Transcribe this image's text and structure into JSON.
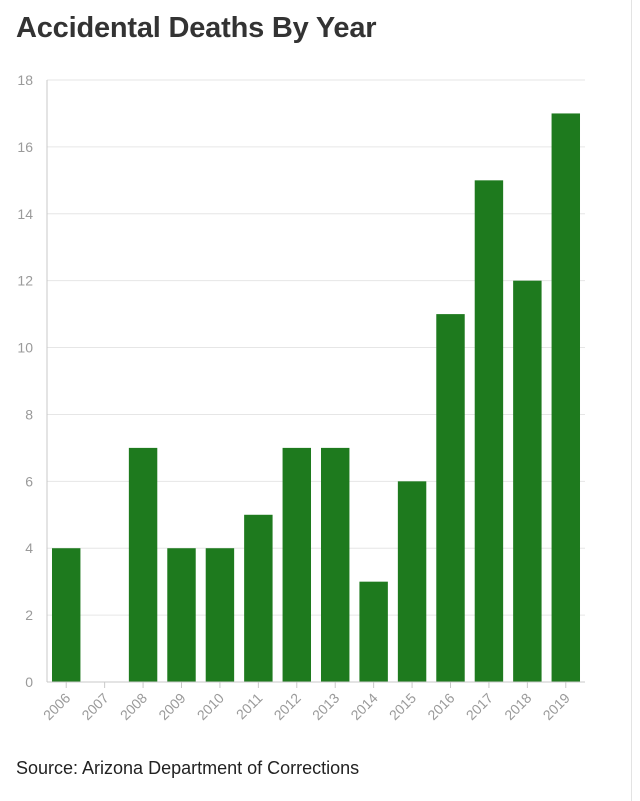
{
  "header": {
    "title": "Accidental Deaths By Year"
  },
  "footer": {
    "source": "Source: Arizona Department of Corrections"
  },
  "colors": {
    "bar": "#1e7a1e",
    "grid": "#e6e6e6",
    "tick_label": "#9a9a9a",
    "axis": "#c8c8c8"
  },
  "chart_data": {
    "type": "bar",
    "title": "Accidental Deaths By Year",
    "categories": [
      "2006",
      "2007",
      "2008",
      "2009",
      "2010",
      "2011",
      "2012",
      "2013",
      "2014",
      "2015",
      "2016",
      "2017",
      "2018",
      "2019"
    ],
    "values": [
      4,
      0,
      7,
      4,
      4,
      5,
      7,
      7,
      3,
      6,
      11,
      15,
      12,
      17
    ],
    "ylim": [
      0,
      18
    ],
    "yticks": [
      0,
      2,
      4,
      6,
      8,
      10,
      12,
      14,
      16,
      18
    ],
    "xlabel": "",
    "ylabel": "",
    "grid": true,
    "legend": "none"
  }
}
